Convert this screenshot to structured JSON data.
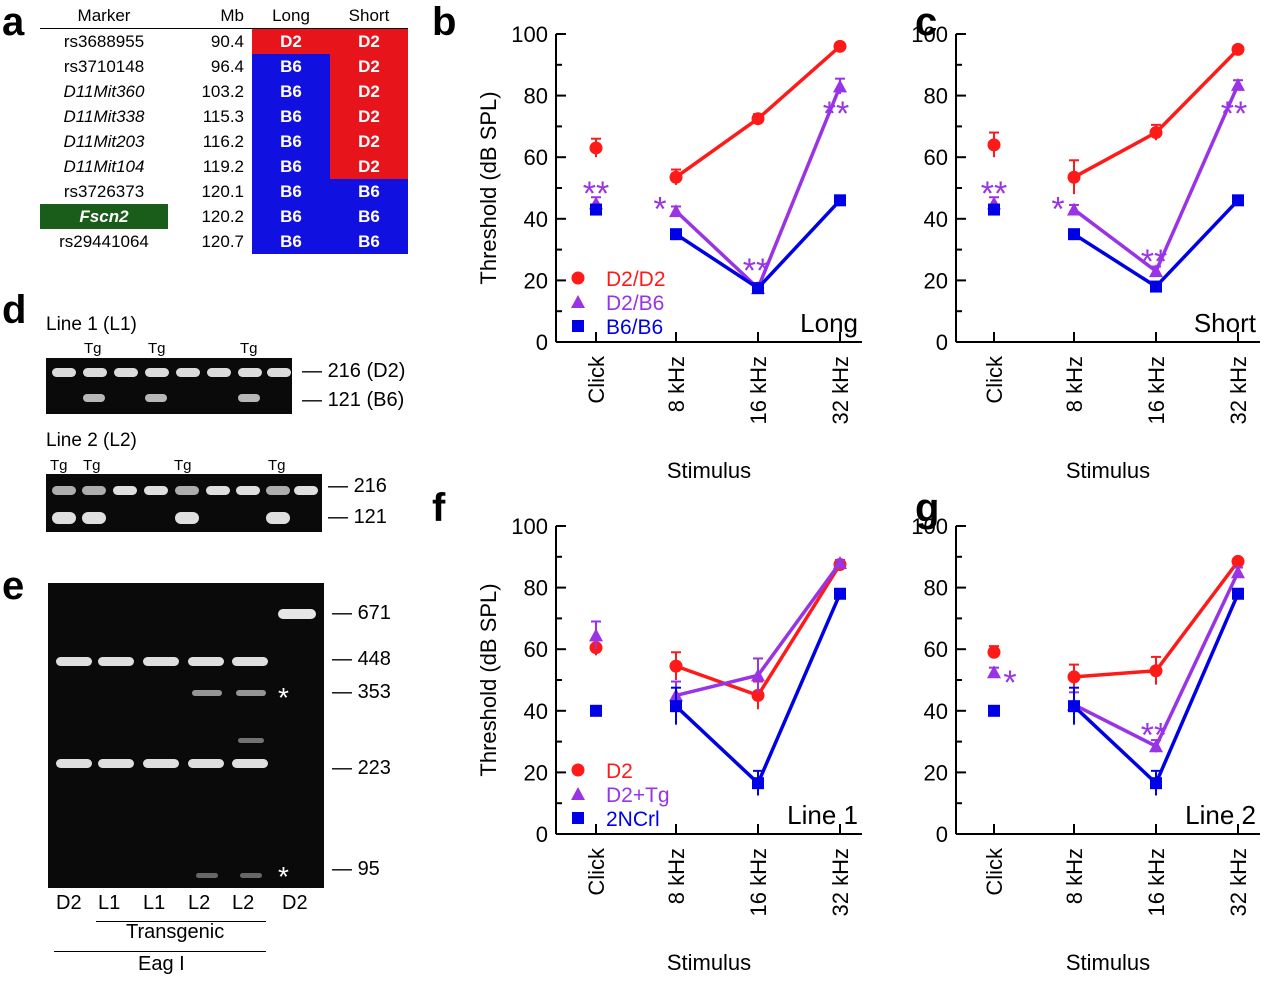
{
  "panel_letters": [
    "a",
    "b",
    "c",
    "d",
    "e",
    "f",
    "g"
  ],
  "colors": {
    "d2": "#ff1a1a",
    "b6": "#0000e6",
    "het": "#9933e6",
    "fscn2_bg": "#1a5c1a",
    "gel_bg": "#0a0a0a",
    "band": "#f2f2f2"
  },
  "table_a": {
    "headers": [
      "Marker",
      "Mb",
      "Long",
      "Short"
    ],
    "rows": [
      {
        "marker": "rs3688955",
        "mb": "90.4",
        "long": "D2",
        "short": "D2",
        "italic": false,
        "highlight": false
      },
      {
        "marker": "rs3710148",
        "mb": "96.4",
        "long": "B6",
        "short": "D2",
        "italic": false,
        "highlight": false
      },
      {
        "marker": "D11Mit360",
        "mb": "103.2",
        "long": "B6",
        "short": "D2",
        "italic": true,
        "highlight": false
      },
      {
        "marker": "D11Mit338",
        "mb": "115.3",
        "long": "B6",
        "short": "D2",
        "italic": true,
        "highlight": false
      },
      {
        "marker": "D11Mit203",
        "mb": "116.2",
        "long": "B6",
        "short": "D2",
        "italic": true,
        "highlight": false
      },
      {
        "marker": "D11Mit104",
        "mb": "119.2",
        "long": "B6",
        "short": "D2",
        "italic": true,
        "highlight": false
      },
      {
        "marker": "rs3726373",
        "mb": "120.1",
        "long": "B6",
        "short": "B6",
        "italic": false,
        "highlight": false
      },
      {
        "marker": "Fscn2",
        "mb": "120.2",
        "long": "B6",
        "short": "B6",
        "italic": true,
        "highlight": true
      },
      {
        "marker": "rs29441064",
        "mb": "120.7",
        "long": "B6",
        "short": "B6",
        "italic": false,
        "highlight": false
      }
    ]
  },
  "gel_d": {
    "line1_title": "Line 1 (L1)",
    "line2_title": "Line 2 (L2)",
    "tg_label": "Tg",
    "line1_sizes": [
      "216 (D2)",
      "121 (B6)"
    ],
    "line2_sizes": [
      "216",
      "121"
    ]
  },
  "gel_e": {
    "sizes": [
      "671",
      "448",
      "353",
      "223",
      "95"
    ],
    "lanes": [
      "D2",
      "L1",
      "L1",
      "L2",
      "L2",
      "D2"
    ],
    "star": "*",
    "transgenic_label": "Transgenic",
    "enzyme_label": "Eag I"
  },
  "chart_data": [
    {
      "panel": "b",
      "type": "line",
      "annotation": "Long",
      "xlabel": "Stimulus",
      "ylabel": "Threshold (dB SPL)",
      "ylim": [
        0,
        100
      ],
      "yticks": [
        0,
        20,
        40,
        60,
        80,
        100
      ],
      "categories": [
        "Click",
        "8 kHz",
        "16 kHz",
        "32 kHz"
      ],
      "legend": "bottom-left",
      "series": [
        {
          "name": "D2/D2",
          "color": "#ff1a1a",
          "marker": "circle",
          "values": [
            63,
            53.5,
            72.5,
            96
          ],
          "errors": [
            3,
            2.5,
            1.5,
            1
          ]
        },
        {
          "name": "D2/B6",
          "color": "#9933e6",
          "marker": "triangle",
          "values": [
            45,
            42.5,
            17.5,
            83
          ],
          "errors": [
            2,
            1.5,
            1,
            2.5
          ]
        },
        {
          "name": "B6/B6",
          "color": "#0000e6",
          "marker": "square",
          "values": [
            43,
            35,
            17.5,
            46
          ],
          "errors": [
            1,
            1,
            1,
            1
          ]
        }
      ],
      "stars": [
        {
          "x": 0,
          "y": 49,
          "text": "**"
        },
        {
          "x": 0.8,
          "y": 44,
          "text": "*"
        },
        {
          "x": 2,
          "y": 24,
          "text": "**"
        },
        {
          "x": 3,
          "y": 75,
          "text": "**"
        }
      ]
    },
    {
      "panel": "c",
      "type": "line",
      "annotation": "Short",
      "xlabel": "Stimulus",
      "ylabel": "",
      "ylim": [
        0,
        100
      ],
      "yticks": [
        0,
        20,
        40,
        60,
        80,
        100
      ],
      "categories": [
        "Click",
        "8 kHz",
        "16 kHz",
        "32 kHz"
      ],
      "series": [
        {
          "name": "D2/D2",
          "color": "#ff1a1a",
          "marker": "circle",
          "values": [
            64,
            53.5,
            68,
            95
          ],
          "errors": [
            4,
            5.5,
            2.5,
            1
          ]
        },
        {
          "name": "D2/B6",
          "color": "#9933e6",
          "marker": "triangle",
          "values": [
            45,
            43,
            23,
            83.5
          ],
          "errors": [
            2,
            1.5,
            1.5,
            1.5
          ]
        },
        {
          "name": "B6/B6",
          "color": "#0000e6",
          "marker": "square",
          "values": [
            43,
            35,
            18,
            46
          ],
          "errors": [
            1,
            1,
            1,
            1
          ]
        }
      ],
      "stars": [
        {
          "x": 0,
          "y": 49,
          "text": "**"
        },
        {
          "x": 0.8,
          "y": 44,
          "text": "*"
        },
        {
          "x": 2,
          "y": 27,
          "text": "**"
        },
        {
          "x": 3,
          "y": 75,
          "text": "**"
        }
      ]
    },
    {
      "panel": "f",
      "type": "line",
      "annotation": "Line 1",
      "xlabel": "Stimulus",
      "ylabel": "Threshold (dB SPL)",
      "ylim": [
        0,
        100
      ],
      "yticks": [
        0,
        20,
        40,
        60,
        80,
        100
      ],
      "categories": [
        "Click",
        "8 kHz",
        "16 kHz",
        "32 kHz"
      ],
      "legend": "bottom-left",
      "series": [
        {
          "name": "D2",
          "color": "#ff1a1a",
          "marker": "circle",
          "values": [
            60.5,
            54.5,
            45,
            87.5
          ],
          "errors": [
            2.5,
            4.5,
            4.5,
            1
          ]
        },
        {
          "name": "D2+Tg",
          "color": "#9933e6",
          "marker": "triangle",
          "values": [
            64.5,
            45,
            51.5,
            88
          ],
          "errors": [
            4.5,
            4.5,
            5.5,
            1
          ]
        },
        {
          "name": "2NCrl",
          "color": "#0000e6",
          "marker": "square",
          "values": [
            40,
            41.5,
            16.5,
            78
          ],
          "errors": [
            1,
            6,
            4,
            1
          ]
        }
      ],
      "stars": []
    },
    {
      "panel": "g",
      "type": "line",
      "annotation": "Line 2",
      "xlabel": "Stimulus",
      "ylabel": "",
      "ylim": [
        0,
        100
      ],
      "yticks": [
        0,
        20,
        40,
        60,
        80,
        100
      ],
      "categories": [
        "Click",
        "8 kHz",
        "16 kHz",
        "32 kHz"
      ],
      "series": [
        {
          "name": "D2",
          "color": "#ff1a1a",
          "marker": "circle",
          "values": [
            59,
            51,
            53,
            88.5
          ],
          "errors": [
            2,
            4,
            4.5,
            1
          ]
        },
        {
          "name": "D2+Tg",
          "color": "#9933e6",
          "marker": "triangle",
          "values": [
            52.5,
            42,
            28.5,
            85
          ],
          "errors": [
            1.5,
            4,
            2,
            1.5
          ]
        },
        {
          "name": "2NCrl",
          "color": "#0000e6",
          "marker": "square",
          "values": [
            40,
            41.5,
            16.5,
            78
          ],
          "errors": [
            1,
            6,
            4,
            1
          ]
        }
      ],
      "stars": [
        {
          "x": 0.2,
          "y": 50,
          "text": "*"
        },
        {
          "x": 2,
          "y": 33,
          "text": "**"
        }
      ]
    }
  ]
}
